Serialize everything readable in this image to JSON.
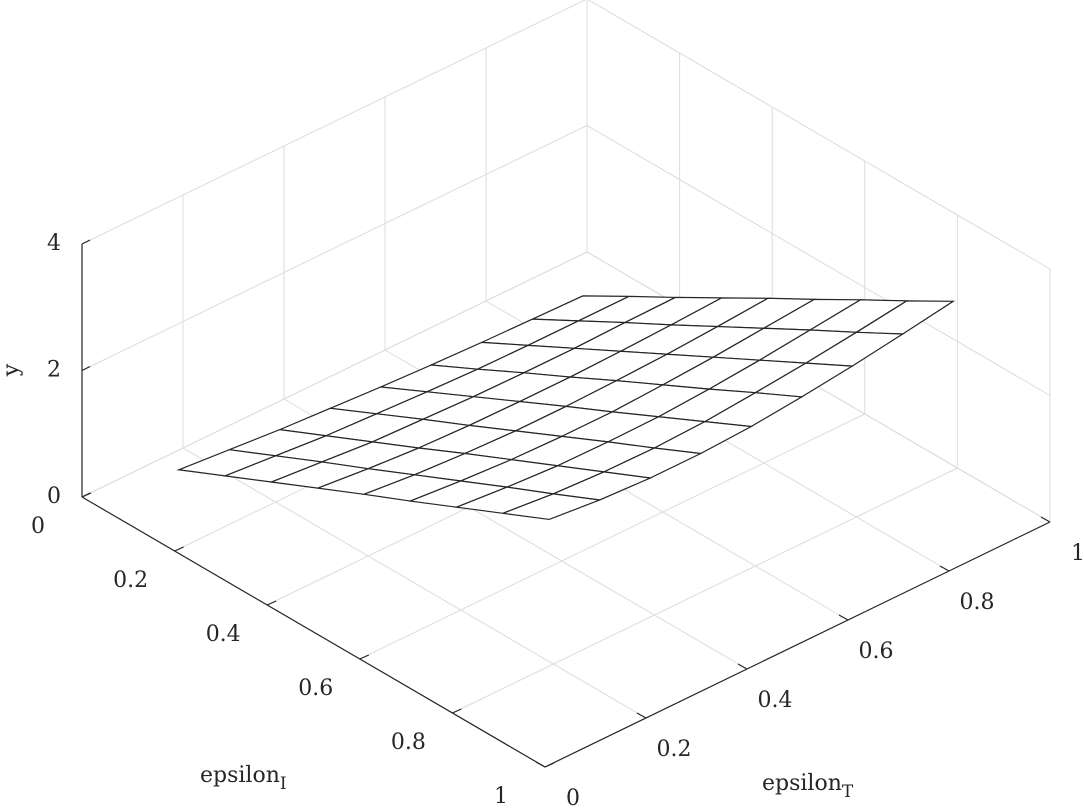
{
  "chart_data": {
    "type": "surface",
    "x": [
      0.1,
      0.2,
      0.3,
      0.4,
      0.5,
      0.6,
      0.7,
      0.8,
      0.9
    ],
    "y": [
      0.1,
      0.2,
      0.3,
      0.4,
      0.5,
      0.6,
      0.7,
      0.8,
      0.9
    ],
    "z": [
      [
        0.47,
        0.4,
        0.33,
        0.28,
        0.23,
        0.19,
        0.16,
        0.14,
        0.12
      ],
      [
        0.8,
        0.73,
        0.66,
        0.62,
        0.58,
        0.55,
        0.54,
        0.54,
        0.54
      ],
      [
        1.13,
        1.06,
        0.99,
        0.96,
        0.93,
        0.92,
        0.92,
        0.94,
        0.95
      ],
      [
        1.46,
        1.38,
        1.32,
        1.29,
        1.28,
        1.28,
        1.3,
        1.33,
        1.37
      ],
      [
        1.79,
        1.71,
        1.66,
        1.63,
        1.63,
        1.65,
        1.68,
        1.73,
        1.79
      ],
      [
        2.11,
        2.04,
        1.99,
        1.97,
        1.97,
        2.01,
        2.06,
        2.13,
        2.2
      ],
      [
        2.44,
        2.37,
        2.32,
        2.31,
        2.32,
        2.37,
        2.44,
        2.53,
        2.62
      ],
      [
        2.77,
        2.69,
        2.65,
        2.64,
        2.67,
        2.74,
        2.82,
        2.92,
        3.03
      ],
      [
        3.1,
        3.02,
        2.98,
        2.98,
        3.02,
        3.1,
        3.2,
        3.32,
        3.45
      ]
    ],
    "xlabel": {
      "base": "epsilon",
      "sub": "T"
    },
    "ylabel": {
      "base": "epsilon",
      "sub": "I"
    },
    "zlabel": "y",
    "xlim": [
      0,
      1
    ],
    "xticks": [
      0,
      0.2,
      0.4,
      0.6,
      0.8,
      1
    ],
    "ylim": [
      0,
      1
    ],
    "yticks": [
      0,
      0.2,
      0.4,
      0.6,
      0.8,
      1
    ],
    "zlim": [
      0,
      4
    ],
    "zticks": [
      0,
      2,
      4
    ],
    "grid": true,
    "color": "#ffffff",
    "edgecolor": "#262626"
  }
}
